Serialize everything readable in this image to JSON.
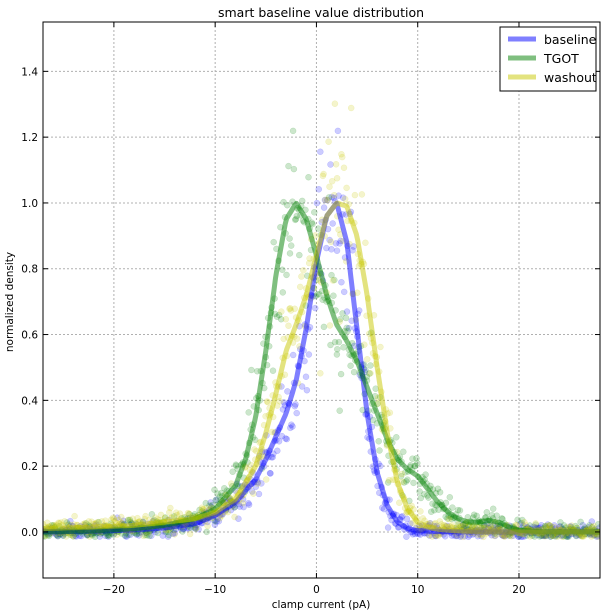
{
  "chart_data": {
    "type": "scatter",
    "title": "smart baseline value distribution",
    "xlabel": "clamp current (pA)",
    "ylabel": "normalized density",
    "xlim": [
      -27,
      28
    ],
    "ylim": [
      -0.14,
      1.55
    ],
    "xticks": [
      -20,
      -10,
      0,
      10,
      20
    ],
    "xtick_labels": [
      "−20",
      "−10",
      "0",
      "10",
      "20"
    ],
    "yticks": [
      0.0,
      0.2,
      0.4,
      0.6,
      0.8,
      1.0,
      1.2,
      1.4
    ],
    "ytick_labels": [
      "0.0",
      "0.2",
      "0.4",
      "0.6",
      "0.8",
      "1.0",
      "1.2",
      "1.4"
    ],
    "grid": true,
    "legend_position": "top-right",
    "series": [
      {
        "name": "baseline",
        "color": "#0000ff",
        "curve": {
          "x": [
            -27,
            -22,
            -18,
            -15,
            -12,
            -10,
            -8,
            -6,
            -5,
            -4,
            -3,
            -2,
            -1,
            0,
            1,
            2,
            3,
            4,
            5,
            6,
            7,
            8,
            9,
            10,
            12,
            15,
            20,
            25,
            28
          ],
          "y": [
            0.0,
            0.002,
            0.006,
            0.012,
            0.025,
            0.05,
            0.09,
            0.16,
            0.22,
            0.29,
            0.36,
            0.46,
            0.62,
            0.82,
            0.96,
            1.0,
            0.88,
            0.62,
            0.36,
            0.18,
            0.08,
            0.03,
            0.01,
            0.004,
            0.001,
            0.0,
            0.0,
            0.0,
            0.0
          ]
        }
      },
      {
        "name": "TGOT",
        "color": "#008000",
        "curve": {
          "x": [
            -27,
            -22,
            -18,
            -15,
            -12,
            -10,
            -8,
            -7,
            -6,
            -5,
            -4,
            -3,
            -2,
            -1,
            0,
            1,
            2,
            3,
            4,
            5,
            6,
            7,
            8,
            9,
            10,
            11,
            12,
            13,
            14,
            15,
            16,
            17,
            18,
            19,
            20,
            22,
            25,
            28
          ],
          "y": [
            0.0,
            0.003,
            0.01,
            0.02,
            0.04,
            0.07,
            0.14,
            0.22,
            0.35,
            0.55,
            0.78,
            0.95,
            1.0,
            0.95,
            0.84,
            0.72,
            0.63,
            0.58,
            0.52,
            0.44,
            0.36,
            0.28,
            0.22,
            0.19,
            0.17,
            0.13,
            0.09,
            0.06,
            0.04,
            0.03,
            0.03,
            0.035,
            0.03,
            0.015,
            0.005,
            0.001,
            0.0,
            0.0
          ]
        }
      },
      {
        "name": "washout",
        "color": "#c8c800",
        "curve": {
          "x": [
            -27,
            -22,
            -18,
            -15,
            -12,
            -10,
            -8,
            -6,
            -5,
            -4,
            -3,
            -2,
            -1,
            0,
            1,
            2,
            3,
            4,
            5,
            6,
            7,
            8,
            9,
            10,
            11,
            12,
            14,
            16,
            20,
            25,
            28
          ],
          "y": [
            0.01,
            0.015,
            0.02,
            0.03,
            0.04,
            0.06,
            0.1,
            0.2,
            0.3,
            0.42,
            0.55,
            0.63,
            0.72,
            0.84,
            0.96,
            1.0,
            0.99,
            0.9,
            0.72,
            0.5,
            0.3,
            0.15,
            0.07,
            0.03,
            0.015,
            0.008,
            0.003,
            0.001,
            0.0,
            0.0,
            0.0
          ]
        }
      }
    ]
  }
}
